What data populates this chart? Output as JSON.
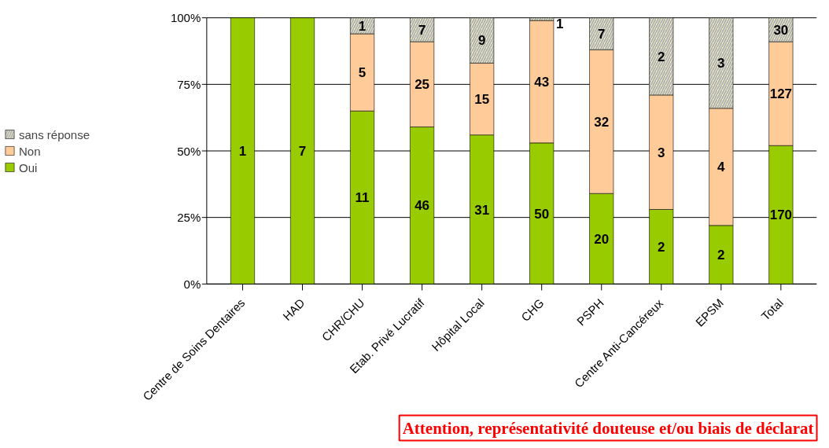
{
  "chart_data": {
    "type": "bar",
    "stacked": true,
    "categories": [
      "Centre de Soins Dentaires",
      "HAD",
      "CHR/CHU",
      "Etab. Privé Lucratif",
      "Hôpital Local",
      "CHG",
      "PSPH",
      "Centre Anti-Cancéreux",
      "EPSM",
      "Total"
    ],
    "series": [
      {
        "name": "Oui",
        "color": "#99cc00",
        "values": [
          100,
          100,
          65,
          59,
          56,
          53,
          34,
          28,
          22,
          52
        ]
      },
      {
        "name": "Non",
        "color": "#ffcc99",
        "values": [
          null,
          null,
          29,
          32,
          27,
          46,
          54,
          43,
          44,
          39
        ]
      },
      {
        "name": "sans réponse",
        "color": "#ffffcc",
        "values": [
          null,
          null,
          6,
          9,
          17,
          1,
          12,
          29,
          34,
          9
        ]
      }
    ],
    "ylim": [
      0,
      100
    ],
    "yticks": [
      {
        "value": 0,
        "label": "0%"
      },
      {
        "value": 25,
        "label": "25%"
      },
      {
        "value": 50,
        "label": "50%"
      },
      {
        "value": 75,
        "label": "75%"
      },
      {
        "value": 100,
        "label": "100%"
      }
    ],
    "grid": "y",
    "legend": "left",
    "annotations": [
      "1",
      "7",
      "11",
      "5",
      "1",
      "46",
      "25",
      "7",
      "31",
      "15",
      "9",
      "50",
      "43",
      "1",
      "20",
      "32",
      "7",
      "2",
      "3",
      "2",
      "2",
      "4",
      "3",
      "170",
      "127",
      "30",
      "Attention, représentativité douteuse et/ou biais de déclarat"
    ]
  }
}
